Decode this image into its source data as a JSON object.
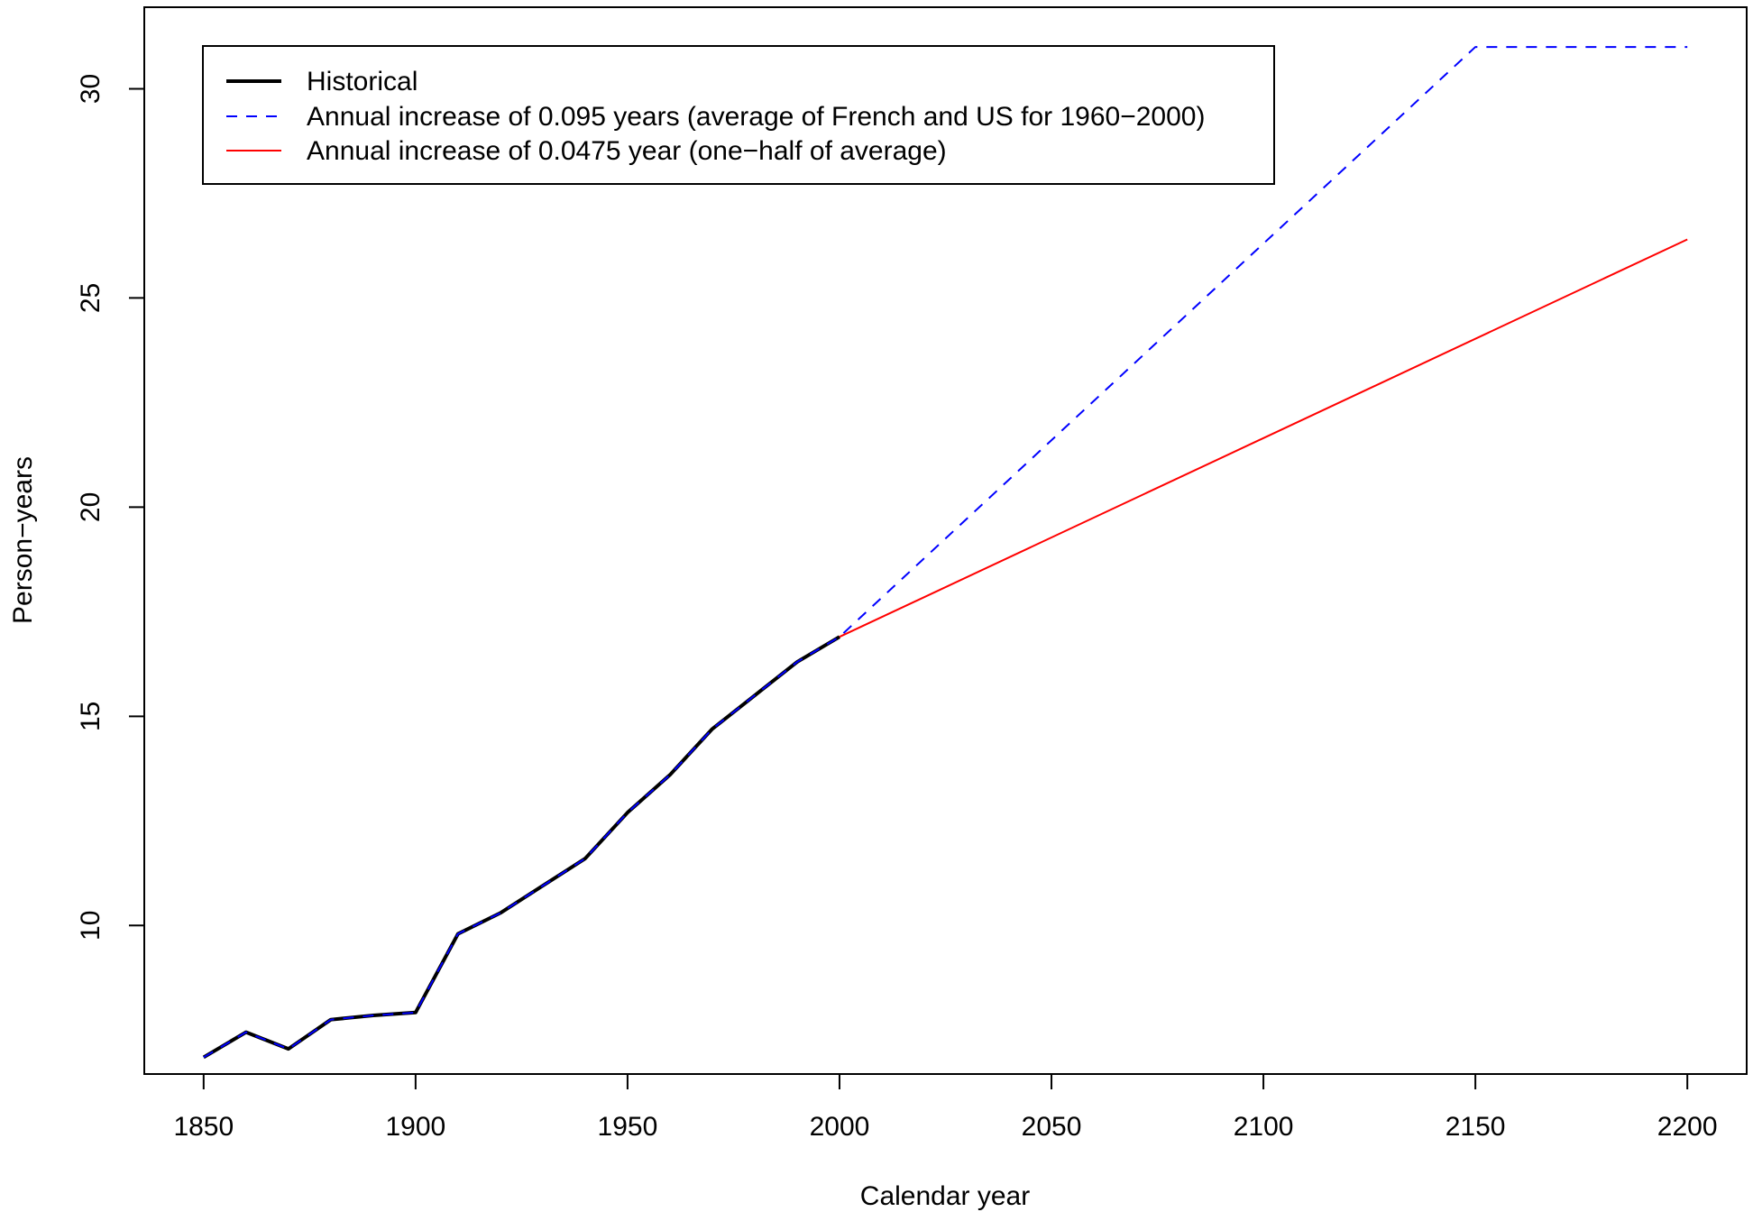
{
  "chart_data": {
    "type": "line",
    "xlabel": "Calendar year",
    "ylabel": "Person−years",
    "xlim": [
      1836,
      2214
    ],
    "ylim": [
      6.45,
      31.95
    ],
    "xticks": [
      1850,
      1900,
      1950,
      2000,
      2050,
      2100,
      2150,
      2200
    ],
    "yticks": [
      10,
      15,
      20,
      25,
      30
    ],
    "grid": false,
    "legend_position": "top-left",
    "series": [
      {
        "name": "Historical",
        "color": "#000000",
        "style": "solid-thick",
        "x": [
          1850,
          1860,
          1870,
          1880,
          1890,
          1900,
          1910,
          1920,
          1930,
          1940,
          1950,
          1960,
          1970,
          1980,
          1990,
          2000
        ],
        "y": [
          6.85,
          7.45,
          7.05,
          7.75,
          7.85,
          7.92,
          9.8,
          10.3,
          10.95,
          11.6,
          12.7,
          13.6,
          14.7,
          15.5,
          16.3,
          16.9
        ]
      },
      {
        "name": "Annual increase of 0.095 years (average of French and US for 1960−2000)",
        "color": "#0000ff",
        "style": "dashed",
        "x": [
          1850,
          1860,
          1870,
          1880,
          1890,
          1900,
          1910,
          1920,
          1930,
          1940,
          1950,
          1960,
          1970,
          1980,
          1990,
          2000,
          2150,
          2200
        ],
        "y": [
          6.85,
          7.45,
          7.05,
          7.75,
          7.85,
          7.92,
          9.8,
          10.3,
          10.95,
          11.6,
          12.7,
          13.6,
          14.7,
          15.5,
          16.3,
          16.9,
          31.0,
          31.0
        ]
      },
      {
        "name": "Annual increase of 0.0475 year (one−half of average)",
        "color": "#ff0000",
        "style": "solid",
        "x": [
          2000,
          2200
        ],
        "y": [
          16.9,
          26.4
        ]
      }
    ]
  }
}
